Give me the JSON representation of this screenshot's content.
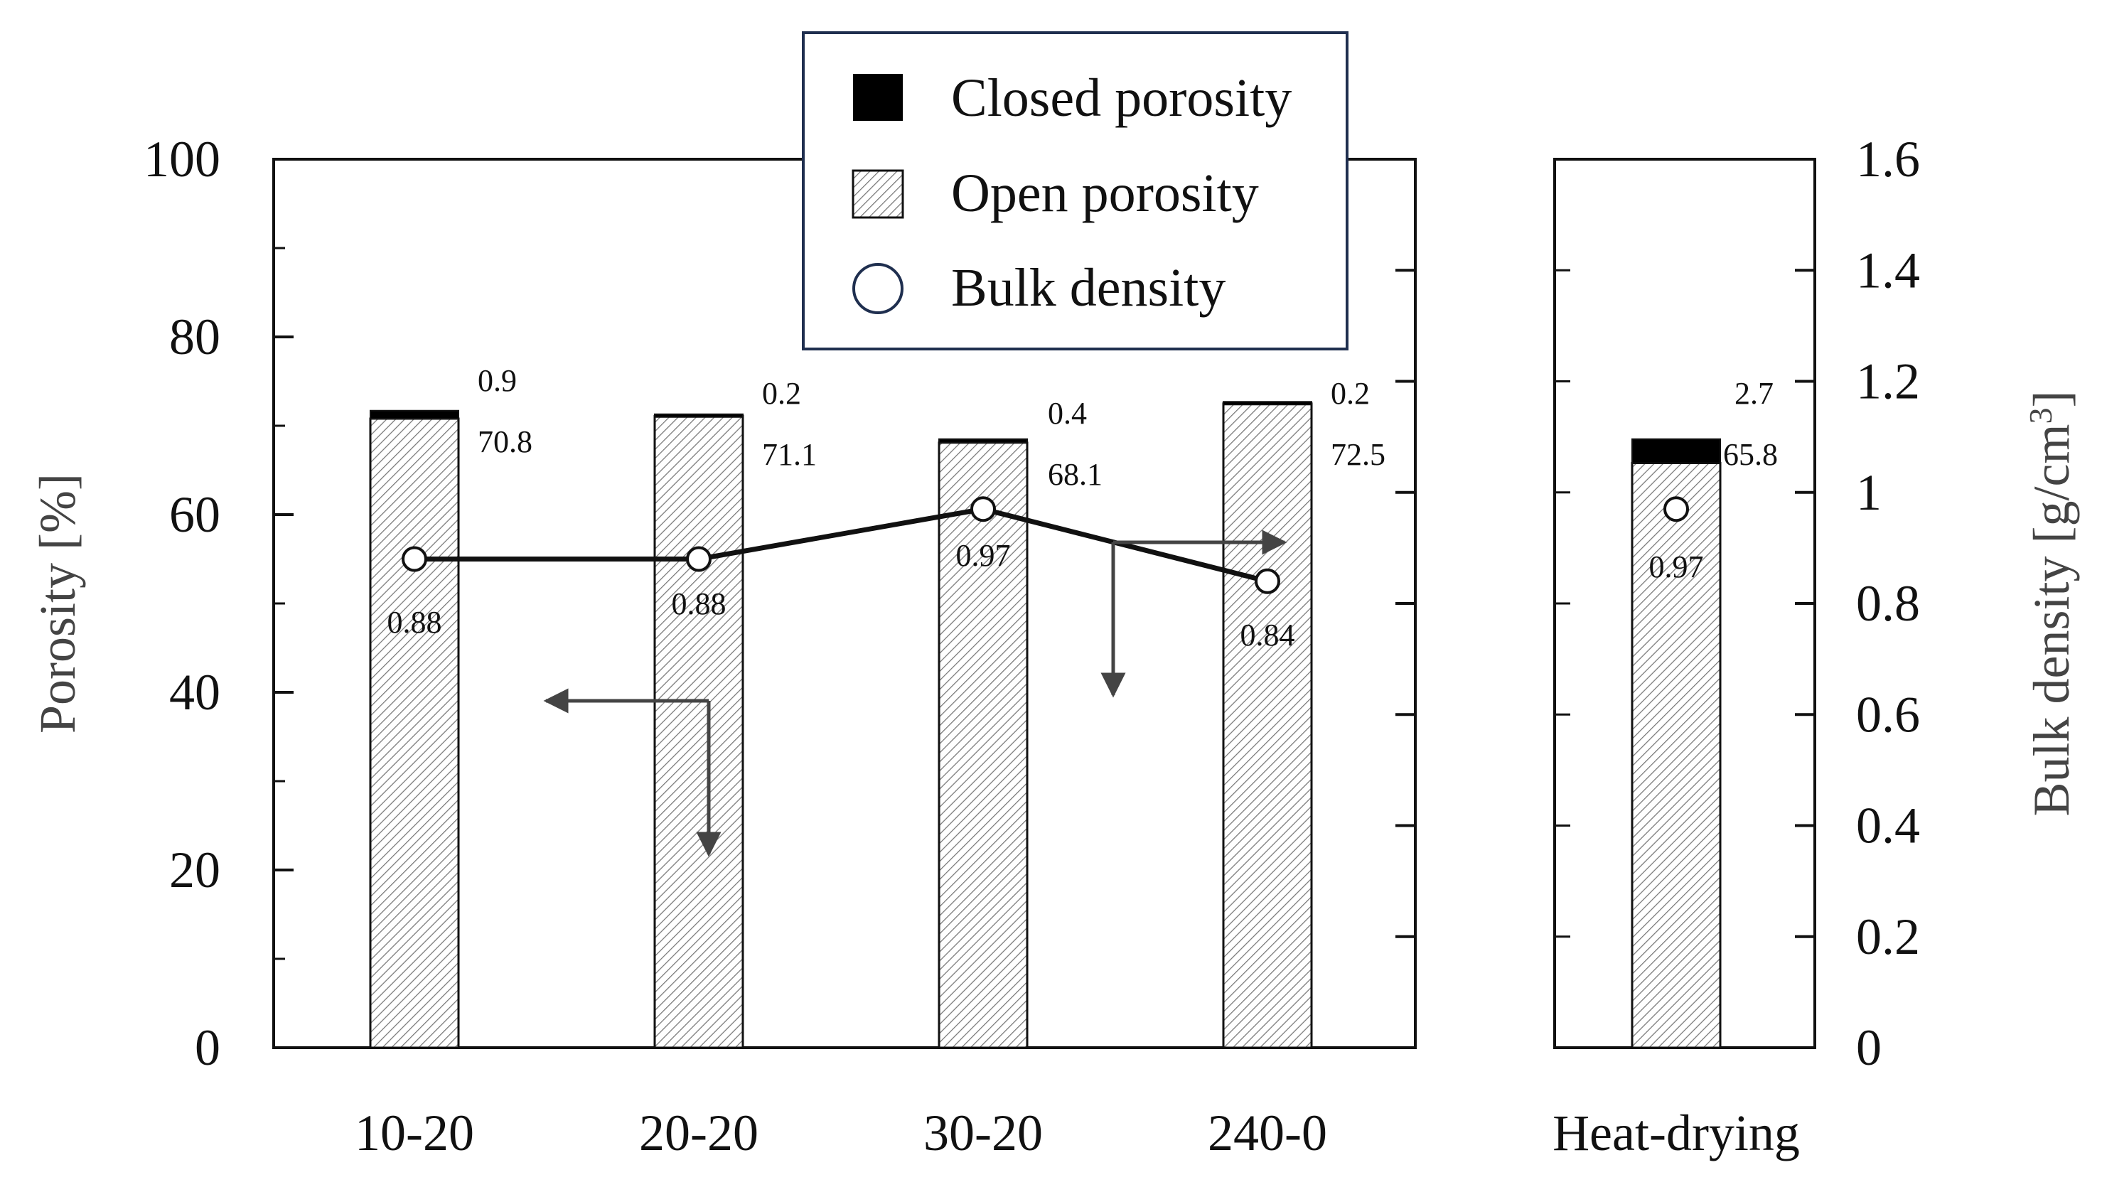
{
  "chart_data": {
    "type": "bar",
    "stacked": true,
    "panels": [
      {
        "name": "main",
        "categories": [
          "10-20",
          "20-20",
          "30-20",
          "240-0"
        ]
      },
      {
        "name": "side",
        "categories": [
          "Heat-drying"
        ]
      }
    ],
    "categories": [
      "10-20",
      "20-20",
      "30-20",
      "240-0",
      "Heat-drying"
    ],
    "series": [
      {
        "name": "Open porosity",
        "values": [
          70.8,
          71.1,
          68.1,
          72.5,
          65.8
        ],
        "axis": "left",
        "style": "hatched"
      },
      {
        "name": "Closed porosity",
        "values": [
          0.9,
          0.2,
          0.4,
          0.2,
          2.7
        ],
        "axis": "left",
        "style": "solid-black"
      },
      {
        "name": "Bulk density",
        "values": [
          0.88,
          0.88,
          0.97,
          0.84,
          0.97
        ],
        "axis": "right",
        "style": "open-circle-line",
        "connected_categories": [
          "10-20",
          "20-20",
          "30-20",
          "240-0"
        ]
      }
    ],
    "open_labels": [
      "70.8",
      "71.1",
      "68.1",
      "72.5",
      "65.8"
    ],
    "closed_labels": [
      "0.9",
      "0.2",
      "0.4",
      "0.2",
      "2.7"
    ],
    "density_labels": [
      "0.88",
      "0.88",
      "0.97",
      "0.84",
      "0.97"
    ],
    "y_left": {
      "label": "Porosity [%]",
      "ylim": [
        0,
        100
      ],
      "ticks": [
        "0",
        "20",
        "40",
        "60",
        "80",
        "100"
      ]
    },
    "y_right": {
      "label_main": "Bulk density [g/cm",
      "label_sup": "3",
      "label_end": "]",
      "ylim": [
        0,
        1.6
      ],
      "ticks": [
        "0",
        "0.2",
        "0.4",
        "0.6",
        "0.8",
        "1",
        "1.2",
        "1.4",
        "1.6"
      ]
    },
    "legend": {
      "position": "top-center",
      "entries": [
        "Closed porosity",
        "Open porosity",
        "Bulk density"
      ]
    },
    "annotations": [
      "arrow pointing to left axis (porosity)",
      "arrow pointing to right axis (bulk density)"
    ],
    "grid": false
  },
  "colors": {
    "closed": "#000000",
    "hatch": "#666666",
    "line": "#111111",
    "legend_border": "#1f2f4f",
    "arrow": "#444444"
  }
}
